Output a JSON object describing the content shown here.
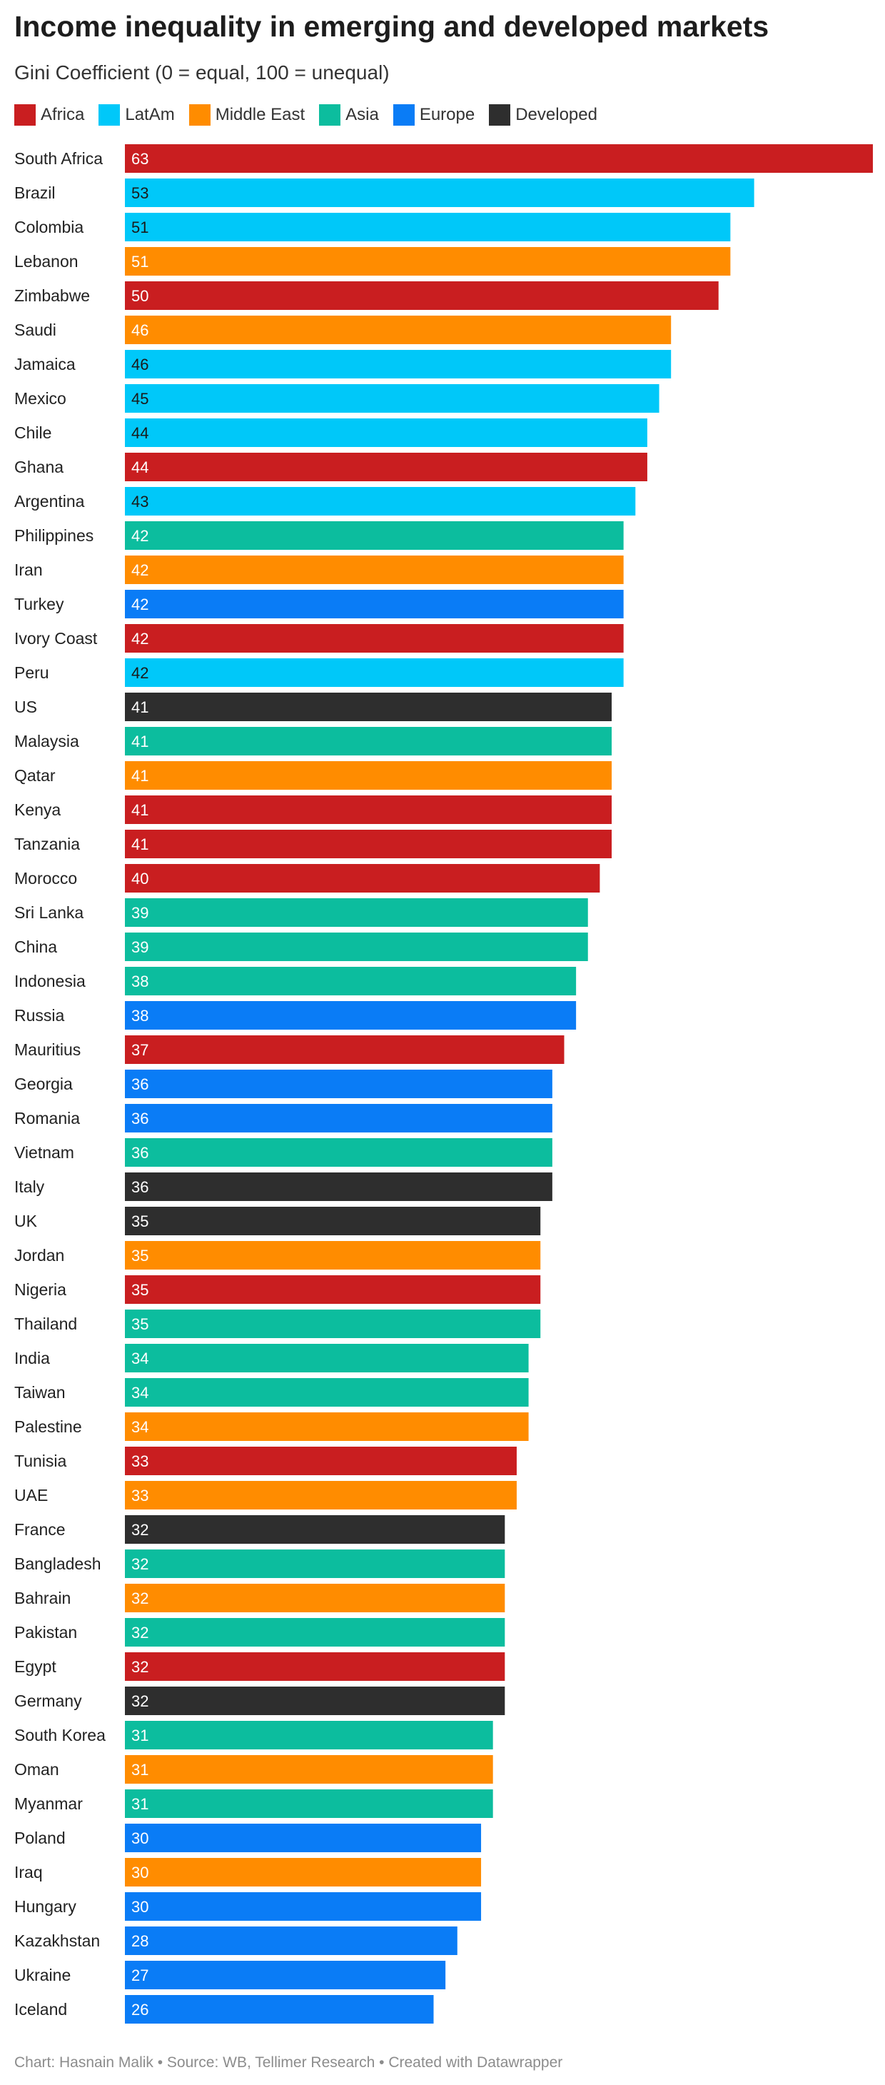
{
  "chart_data": {
    "type": "bar",
    "orientation": "horizontal",
    "title": "Income inequality in emerging and developed markets",
    "subtitle": "Gini Coefficient (0 = equal, 100 = unequal)",
    "legend_position": "top-left",
    "grid": false,
    "xlim": [
      0,
      63
    ],
    "legend": [
      {
        "name": "Africa",
        "color": "#c91e20"
      },
      {
        "name": "LatAm",
        "color": "#00c8f9"
      },
      {
        "name": "Middle East",
        "color": "#ff8c00"
      },
      {
        "name": "Asia",
        "color": "#0cbd9e"
      },
      {
        "name": "Europe",
        "color": "#0a7cf6"
      },
      {
        "name": "Developed",
        "color": "#2e2e2e"
      }
    ],
    "bars": [
      {
        "country": "South Africa",
        "value": 63,
        "group": "Africa"
      },
      {
        "country": "Brazil",
        "value": 53,
        "group": "LatAm"
      },
      {
        "country": "Colombia",
        "value": 51,
        "group": "LatAm"
      },
      {
        "country": "Lebanon",
        "value": 51,
        "group": "Middle East"
      },
      {
        "country": "Zimbabwe",
        "value": 50,
        "group": "Africa"
      },
      {
        "country": "Saudi",
        "value": 46,
        "group": "Middle East"
      },
      {
        "country": "Jamaica",
        "value": 46,
        "group": "LatAm"
      },
      {
        "country": "Mexico",
        "value": 45,
        "group": "LatAm"
      },
      {
        "country": "Chile",
        "value": 44,
        "group": "LatAm"
      },
      {
        "country": "Ghana",
        "value": 44,
        "group": "Africa"
      },
      {
        "country": "Argentina",
        "value": 43,
        "group": "LatAm"
      },
      {
        "country": "Philippines",
        "value": 42,
        "group": "Asia"
      },
      {
        "country": "Iran",
        "value": 42,
        "group": "Middle East"
      },
      {
        "country": "Turkey",
        "value": 42,
        "group": "Europe"
      },
      {
        "country": "Ivory Coast",
        "value": 42,
        "group": "Africa"
      },
      {
        "country": "Peru",
        "value": 42,
        "group": "LatAm"
      },
      {
        "country": "US",
        "value": 41,
        "group": "Developed"
      },
      {
        "country": "Malaysia",
        "value": 41,
        "group": "Asia"
      },
      {
        "country": "Qatar",
        "value": 41,
        "group": "Middle East"
      },
      {
        "country": "Kenya",
        "value": 41,
        "group": "Africa"
      },
      {
        "country": "Tanzania",
        "value": 41,
        "group": "Africa"
      },
      {
        "country": "Morocco",
        "value": 40,
        "group": "Africa"
      },
      {
        "country": "Sri Lanka",
        "value": 39,
        "group": "Asia"
      },
      {
        "country": "China",
        "value": 39,
        "group": "Asia"
      },
      {
        "country": "Indonesia",
        "value": 38,
        "group": "Asia"
      },
      {
        "country": "Russia",
        "value": 38,
        "group": "Europe"
      },
      {
        "country": "Mauritius",
        "value": 37,
        "group": "Africa"
      },
      {
        "country": "Georgia",
        "value": 36,
        "group": "Europe"
      },
      {
        "country": "Romania",
        "value": 36,
        "group": "Europe"
      },
      {
        "country": "Vietnam",
        "value": 36,
        "group": "Asia"
      },
      {
        "country": "Italy",
        "value": 36,
        "group": "Developed"
      },
      {
        "country": "UK",
        "value": 35,
        "group": "Developed"
      },
      {
        "country": "Jordan",
        "value": 35,
        "group": "Middle East"
      },
      {
        "country": "Nigeria",
        "value": 35,
        "group": "Africa"
      },
      {
        "country": "Thailand",
        "value": 35,
        "group": "Asia"
      },
      {
        "country": "India",
        "value": 34,
        "group": "Asia"
      },
      {
        "country": "Taiwan",
        "value": 34,
        "group": "Asia"
      },
      {
        "country": "Palestine",
        "value": 34,
        "group": "Middle East"
      },
      {
        "country": "Tunisia",
        "value": 33,
        "group": "Africa"
      },
      {
        "country": "UAE",
        "value": 33,
        "group": "Middle East"
      },
      {
        "country": "France",
        "value": 32,
        "group": "Developed"
      },
      {
        "country": "Bangladesh",
        "value": 32,
        "group": "Asia"
      },
      {
        "country": "Bahrain",
        "value": 32,
        "group": "Middle East"
      },
      {
        "country": "Pakistan",
        "value": 32,
        "group": "Asia"
      },
      {
        "country": "Egypt",
        "value": 32,
        "group": "Africa"
      },
      {
        "country": "Germany",
        "value": 32,
        "group": "Developed"
      },
      {
        "country": "South Korea",
        "value": 31,
        "group": "Asia"
      },
      {
        "country": "Oman",
        "value": 31,
        "group": "Middle East"
      },
      {
        "country": "Myanmar",
        "value": 31,
        "group": "Asia"
      },
      {
        "country": "Poland",
        "value": 30,
        "group": "Europe"
      },
      {
        "country": "Iraq",
        "value": 30,
        "group": "Middle East"
      },
      {
        "country": "Hungary",
        "value": 30,
        "group": "Europe"
      },
      {
        "country": "Kazakhstan",
        "value": 28,
        "group": "Europe"
      },
      {
        "country": "Ukraine",
        "value": 27,
        "group": "Europe"
      },
      {
        "country": "Iceland",
        "value": 26,
        "group": "Europe"
      }
    ]
  },
  "footer": "Chart: Hasnain Malik • Source: WB, Tellimer Research • Created with Datawrapper"
}
